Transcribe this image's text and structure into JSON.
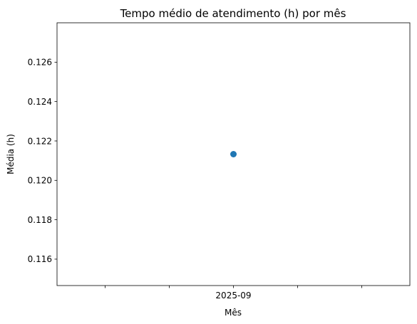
{
  "chart_data": {
    "type": "scatter",
    "title": "Tempo médio de atendimento (h) por mês",
    "xlabel": "Mês",
    "ylabel": "Média (h)",
    "x_categories": [
      "2025-09"
    ],
    "x_tick_labels": [
      "",
      "",
      "2025-09",
      "",
      ""
    ],
    "x_tick_values": [
      -0.4,
      -0.2,
      0,
      0.2,
      0.4
    ],
    "xlim": [
      -0.55,
      0.55
    ],
    "ylim": [
      0.11466,
      0.128
    ],
    "y_ticks": [
      0.116,
      0.118,
      0.12,
      0.122,
      0.124,
      0.126
    ],
    "y_tick_labels": [
      "0.116",
      "0.118",
      "0.120",
      "0.122",
      "0.124",
      "0.126"
    ],
    "series": [
      {
        "x": [
          "2025-09"
        ],
        "values": [
          0.12133
        ],
        "color": "#1f77b4"
      }
    ],
    "grid": false,
    "legend": false
  }
}
